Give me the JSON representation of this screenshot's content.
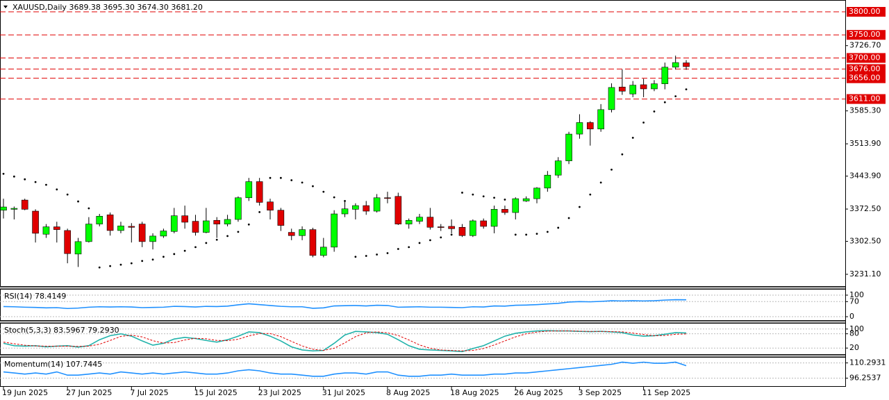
{
  "chart_data": [
    {
      "type": "candlestick",
      "title": "XAUUSD,Daily  3689.38 3695.30 3674.30 3681.20",
      "categories": [
        "19 Jun 2025",
        null,
        null,
        null,
        null,
        null,
        "27 Jun 2025",
        null,
        null,
        null,
        null,
        null,
        "7 Jul 2025",
        null,
        null,
        null,
        null,
        null,
        "15 Jul 2025",
        null,
        null,
        null,
        null,
        null,
        "23 Jul 2025",
        null,
        null,
        null,
        null,
        null,
        "31 Jul 2025",
        null,
        null,
        null,
        null,
        null,
        "8 Aug 2025",
        null,
        null,
        null,
        null,
        null,
        "18 Aug 2025",
        null,
        null,
        null,
        null,
        null,
        "26 Aug 2025",
        null,
        null,
        null,
        null,
        null,
        "3 Sep 2025",
        null,
        null,
        null,
        null,
        null,
        "11 Sep 2025",
        null,
        null,
        null,
        null
      ],
      "open": [
        3370,
        3372,
        3392,
        3368,
        3318,
        3334,
        3326,
        3275,
        3302,
        3340,
        3360,
        3326,
        3335,
        3340,
        3302,
        3314,
        3324,
        3358,
        3346,
        3322,
        3348,
        3340,
        3350,
        3397,
        3432,
        3388,
        3370,
        3322,
        3315,
        3328,
        3272,
        3290,
        3362,
        3372,
        3380,
        3368,
        3397,
        3400,
        3340,
        3346,
        3355,
        3334,
        3335,
        3333,
        3315,
        3347,
        3335,
        3372,
        3365,
        3390,
        3395,
        3418,
        3446,
        3477,
        3535,
        3560,
        3546,
        3588,
        3637,
        3622,
        3642,
        3633,
        3644,
        3680,
        3689.38
      ],
      "high": [
        3395,
        3378,
        3395,
        3372,
        3340,
        3345,
        3330,
        3310,
        3355,
        3362,
        3365,
        3345,
        3342,
        3345,
        3320,
        3330,
        3375,
        3380,
        3360,
        3375,
        3355,
        3360,
        3400,
        3440,
        3440,
        3395,
        3375,
        3330,
        3335,
        3332,
        3310,
        3370,
        3390,
        3385,
        3390,
        3405,
        3410,
        3408,
        3352,
        3362,
        3375,
        3340,
        3350,
        3340,
        3350,
        3352,
        3380,
        3380,
        3398,
        3400,
        3420,
        3455,
        3485,
        3540,
        3578,
        3563,
        3600,
        3645,
        3675,
        3650,
        3655,
        3652,
        3690,
        3705,
        3695.3
      ],
      "low": [
        3352,
        3350,
        3370,
        3300,
        3310,
        3300,
        3255,
        3247,
        3300,
        3335,
        3315,
        3320,
        3300,
        3290,
        3285,
        3310,
        3320,
        3330,
        3315,
        3320,
        3310,
        3335,
        3345,
        3390,
        3380,
        3350,
        3325,
        3305,
        3305,
        3268,
        3268,
        3280,
        3355,
        3350,
        3360,
        3365,
        3385,
        3338,
        3330,
        3340,
        3328,
        3325,
        3320,
        3312,
        3312,
        3330,
        3320,
        3360,
        3350,
        3388,
        3385,
        3410,
        3440,
        3470,
        3525,
        3510,
        3540,
        3582,
        3620,
        3615,
        3615,
        3628,
        3632,
        3675,
        3674.3
      ],
      "close": [
        3377,
        3374,
        3372,
        3320,
        3334,
        3328,
        3276,
        3302,
        3340,
        3357,
        3326,
        3336,
        3333,
        3302,
        3314,
        3325,
        3358,
        3344,
        3322,
        3347,
        3340,
        3350,
        3397,
        3432,
        3387,
        3370,
        3337,
        3315,
        3328,
        3272,
        3290,
        3362,
        3373,
        3380,
        3368,
        3397,
        3396,
        3340,
        3348,
        3355,
        3333,
        3333,
        3330,
        3315,
        3347,
        3335,
        3372,
        3365,
        3395,
        3395,
        3418,
        3446,
        3477,
        3535,
        3560,
        3546,
        3588,
        3636,
        3628,
        3641,
        3633,
        3644,
        3680,
        3690,
        3681.2
      ],
      "up_color": "#00ff00",
      "down_color": "#e00000",
      "sar": {
        "color": "#000000",
        "values": [
          3449,
          3443,
          3437,
          3431,
          3425,
          3415,
          3404,
          3389,
          3374,
          3246,
          3249,
          3252,
          3255,
          3260,
          3263,
          3269,
          3275,
          3282,
          3290,
          3299,
          3306,
          3314,
          3323,
          3339,
          3366,
          3440,
          3440,
          3435,
          3430,
          3422,
          3410,
          3398,
          3390,
          3269,
          3271,
          3274,
          3277,
          3286,
          3290,
          3299,
          3305,
          3311,
          3317,
          3408,
          3404,
          3400,
          3397,
          3393,
          3317,
          3317,
          3319,
          3323,
          3332,
          3353,
          3377,
          3404,
          3430,
          3458,
          3491,
          3527,
          3560,
          3584,
          3604,
          3617,
          3632
        ]
      },
      "levels": [
        {
          "value": 3800,
          "label": "3800.00"
        },
        {
          "value": 3750,
          "label": "3750.00"
        },
        {
          "value": 3700,
          "label": "3700.00"
        },
        {
          "value": 3676,
          "label": "3676.00"
        },
        {
          "value": 3656,
          "label": "3656.00"
        },
        {
          "value": 3611,
          "label": "3611.00"
        }
      ],
      "level_color": "#e00000",
      "ylim": [
        3205.5,
        3825.6
      ],
      "yticks": [
        {
          "value": 3726.7,
          "label": "3726.70"
        },
        {
          "value": 3585.3,
          "label": "3585.30"
        },
        {
          "value": 3513.9,
          "label": "3513.90"
        },
        {
          "value": 3443.9,
          "label": "3443.90"
        },
        {
          "value": 3372.5,
          "label": "3372.50"
        },
        {
          "value": 3302.5,
          "label": "3302.50"
        },
        {
          "value": 3231.1,
          "label": "3231.10"
        }
      ]
    },
    {
      "type": "line",
      "title": "RSI(14) 78.4149",
      "ylim": [
        -16,
        129
      ],
      "yticks": [
        100,
        70,
        0
      ],
      "series": [
        {
          "color": "#1e90ff",
          "values": [
            47,
            46,
            44,
            43,
            41,
            42,
            38,
            40,
            44,
            46,
            45,
            46,
            45,
            42,
            43,
            44,
            48,
            47,
            45,
            48,
            47,
            49,
            55,
            60,
            56,
            52,
            48,
            46,
            46,
            39,
            41,
            50,
            51,
            52,
            50,
            53,
            52,
            44,
            45,
            46,
            44,
            44,
            43,
            42,
            46,
            45,
            50,
            49,
            53,
            54,
            56,
            59,
            62,
            68,
            70,
            69,
            71,
            74,
            73,
            74,
            73,
            74,
            77,
            79,
            78.4149
          ]
        }
      ]
    },
    {
      "type": "line",
      "title": "Stoch(5,3,3) 83.5967 79.2930",
      "ylim": [
        -5.7,
        125.7
      ],
      "yticks": [
        100,
        80,
        20
      ],
      "series": [
        {
          "color": "#20b2aa",
          "values": [
            40,
            30,
            28,
            30,
            25,
            28,
            30,
            24,
            30,
            55,
            72,
            80,
            70,
            50,
            32,
            40,
            58,
            65,
            60,
            52,
            45,
            55,
            70,
            88,
            85,
            70,
            50,
            25,
            12,
            8,
            10,
            40,
            75,
            90,
            88,
            85,
            78,
            55,
            30,
            15,
            12,
            10,
            8,
            5,
            18,
            30,
            50,
            70,
            82,
            88,
            92,
            93,
            92,
            92,
            90,
            89,
            90,
            88,
            85,
            75,
            70,
            72,
            78,
            85,
            83.5967
          ]
        },
        {
          "color": "#e00000",
          "style": "dashed",
          "values": [
            45,
            38,
            32,
            29,
            28,
            28,
            28,
            27,
            28,
            36,
            52,
            69,
            74,
            67,
            51,
            41,
            43,
            54,
            61,
            59,
            52,
            51,
            57,
            71,
            81,
            81,
            68,
            48,
            29,
            15,
            10,
            19,
            42,
            68,
            84,
            88,
            84,
            73,
            54,
            33,
            19,
            12,
            10,
            8,
            10,
            18,
            33,
            50,
            67,
            80,
            87,
            91,
            92,
            92,
            91,
            90,
            90,
            89,
            88,
            83,
            77,
            72,
            73,
            78,
            79.293
          ]
        }
      ]
    },
    {
      "type": "line",
      "title": "Momentum(14) 107.7445",
      "ylim": [
        88.9,
        115.8
      ],
      "yticks": [
        {
          "value": 110.2931,
          "label": "110.2931"
        },
        {
          "value": 96.2537,
          "label": "96.2537"
        }
      ],
      "series": [
        {
          "color": "#1e90ff",
          "values": [
            102,
            101,
            100,
            101,
            100,
            102,
            99,
            99,
            100,
            101,
            100,
            102,
            101,
            100,
            101,
            100,
            101,
            102,
            101,
            100,
            100,
            101,
            103,
            104,
            103,
            101,
            100,
            100,
            99,
            98,
            98,
            100,
            101,
            101,
            100,
            102,
            102,
            99,
            98,
            98,
            99,
            99,
            100,
            99,
            99,
            99,
            100,
            100,
            101,
            101,
            102,
            103,
            104,
            105,
            106,
            107,
            108,
            109,
            111,
            110,
            111,
            110,
            110,
            111,
            107.7445
          ]
        }
      ]
    }
  ]
}
